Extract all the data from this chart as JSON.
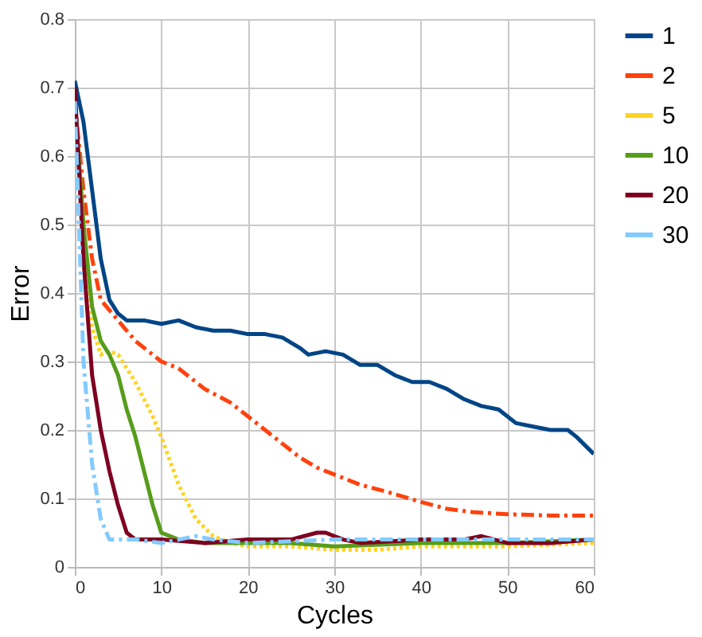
{
  "chart_data": {
    "type": "line",
    "xlabel": "Cycles",
    "ylabel": "Error",
    "xlim": [
      0,
      60
    ],
    "ylim": [
      0,
      0.8
    ],
    "xticks": [
      0,
      10,
      20,
      30,
      40,
      50,
      60
    ],
    "yticks": [
      0,
      0.1,
      0.2,
      0.3,
      0.4,
      0.5,
      0.6,
      0.7,
      0.8
    ],
    "grid": true,
    "legend": "right",
    "marker": "none",
    "series": [
      {
        "name": "1",
        "color": "#004586",
        "line_style": "solid",
        "x": [
          0,
          1,
          2,
          3,
          4,
          5,
          6,
          8,
          10,
          12,
          14,
          16,
          18,
          20,
          22,
          24,
          26,
          27,
          29,
          31,
          33,
          35,
          37,
          39,
          41,
          43,
          45,
          47,
          49,
          51,
          53,
          55,
          57,
          58,
          60
        ],
        "values": [
          0.71,
          0.65,
          0.55,
          0.45,
          0.39,
          0.37,
          0.36,
          0.36,
          0.355,
          0.36,
          0.35,
          0.345,
          0.345,
          0.34,
          0.34,
          0.335,
          0.32,
          0.31,
          0.315,
          0.31,
          0.295,
          0.295,
          0.28,
          0.27,
          0.27,
          0.26,
          0.245,
          0.235,
          0.23,
          0.21,
          0.205,
          0.2,
          0.2,
          0.19,
          0.165
        ]
      },
      {
        "name": "2",
        "color": "#ff420e",
        "line_style": "dashed",
        "x": [
          0,
          1,
          2,
          3,
          5,
          7,
          10,
          12,
          15,
          18,
          20,
          23,
          26,
          28,
          30,
          33,
          36,
          40,
          43,
          46,
          50,
          55,
          60
        ],
        "values": [
          0.68,
          0.55,
          0.45,
          0.39,
          0.36,
          0.33,
          0.3,
          0.29,
          0.26,
          0.24,
          0.22,
          0.19,
          0.16,
          0.145,
          0.135,
          0.12,
          0.11,
          0.095,
          0.085,
          0.08,
          0.077,
          0.075,
          0.075
        ]
      },
      {
        "name": "5",
        "color": "#ffd320",
        "line_style": "dotted",
        "x": [
          0,
          1,
          2,
          3,
          4,
          5,
          7,
          9,
          10,
          12,
          14,
          16,
          18,
          20,
          25,
          30,
          35,
          40,
          50,
          60
        ],
        "values": [
          0.68,
          0.5,
          0.35,
          0.31,
          0.315,
          0.31,
          0.27,
          0.22,
          0.19,
          0.12,
          0.07,
          0.045,
          0.035,
          0.03,
          0.03,
          0.025,
          0.025,
          0.03,
          0.03,
          0.035
        ]
      },
      {
        "name": "10",
        "color": "#579d1c",
        "line_style": "solid",
        "x": [
          0,
          1,
          2,
          3,
          4,
          5,
          6,
          7,
          8,
          9,
          10,
          12,
          15,
          20,
          25,
          30,
          40,
          50,
          60
        ],
        "values": [
          0.68,
          0.5,
          0.38,
          0.33,
          0.31,
          0.28,
          0.23,
          0.19,
          0.14,
          0.09,
          0.05,
          0.04,
          0.035,
          0.035,
          0.035,
          0.03,
          0.035,
          0.035,
          0.04
        ]
      },
      {
        "name": "20",
        "color": "#7e0021",
        "line_style": "solid",
        "x": [
          0,
          1,
          2,
          3,
          4,
          5,
          6,
          7,
          10,
          15,
          20,
          25,
          28,
          29,
          31,
          33,
          40,
          45,
          47,
          50,
          55,
          60
        ],
        "values": [
          0.7,
          0.45,
          0.28,
          0.2,
          0.14,
          0.09,
          0.05,
          0.04,
          0.04,
          0.035,
          0.04,
          0.04,
          0.05,
          0.05,
          0.04,
          0.035,
          0.04,
          0.04,
          0.045,
          0.035,
          0.035,
          0.04
        ]
      },
      {
        "name": "30",
        "color": "#83caff",
        "line_style": "dashed",
        "x": [
          0,
          1,
          2,
          3,
          4,
          5,
          7,
          10,
          12,
          14,
          16,
          20,
          30,
          40,
          50,
          60
        ],
        "values": [
          0.68,
          0.3,
          0.15,
          0.07,
          0.04,
          0.04,
          0.04,
          0.035,
          0.04,
          0.045,
          0.04,
          0.035,
          0.04,
          0.04,
          0.04,
          0.04
        ]
      }
    ]
  }
}
